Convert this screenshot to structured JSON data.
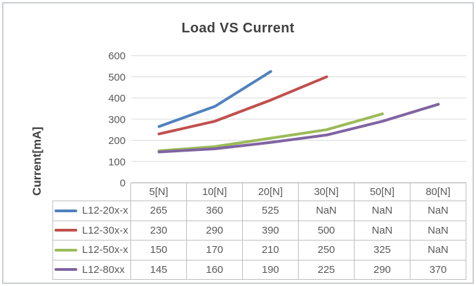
{
  "window": {
    "background": "#ffffff",
    "frame_border_color": "#c9ccd0"
  },
  "chart_data": {
    "type": "line",
    "title": "Load VS Current",
    "xlabel": "",
    "ylabel": "Current[mA]",
    "categories": [
      "5[N]",
      "10[N]",
      "20[N]",
      "30[N]",
      "50[N]",
      "80[N]"
    ],
    "series": [
      {
        "name": "L12-20x-x",
        "color": "#4F81BD",
        "values": [
          265,
          360,
          525,
          null,
          null,
          null
        ]
      },
      {
        "name": "L12-30x-x",
        "color": "#C0504D",
        "values": [
          230,
          290,
          390,
          500,
          null,
          null
        ]
      },
      {
        "name": "L12-50x-x",
        "color": "#9BBB59",
        "values": [
          150,
          170,
          210,
          250,
          325,
          null
        ]
      },
      {
        "name": "L12-80xx",
        "color": "#8064A2",
        "values": [
          145,
          160,
          190,
          225,
          290,
          370
        ]
      }
    ],
    "y_ticks": [
      600,
      500,
      400,
      300,
      200,
      100,
      0
    ],
    "ylim": [
      0,
      600
    ],
    "grid": true,
    "legend_position": "data-table-left",
    "data_table_shown": true,
    "nan_label": "NaN"
  },
  "style": {
    "title_color": "#404040",
    "axis_text_color": "#595959",
    "gridline_color": "#d9d9d9",
    "axis_line_color": "#bfbfbf",
    "table_border_color": "#bfbfbf",
    "line_width": 4
  }
}
